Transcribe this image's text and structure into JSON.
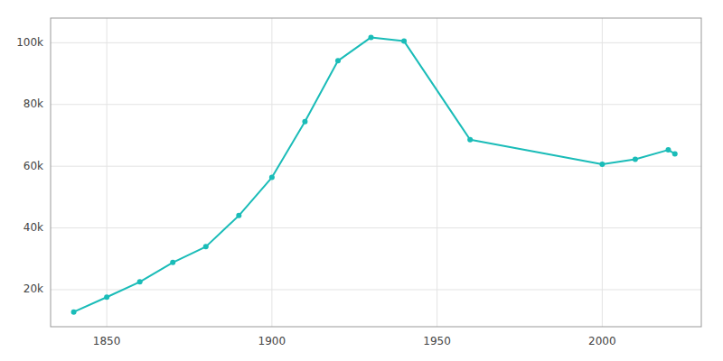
{
  "chart_data": {
    "type": "line",
    "x": [
      1840,
      1850,
      1860,
      1870,
      1880,
      1890,
      1900,
      1910,
      1920,
      1930,
      1940,
      1960,
      2000,
      2010,
      2020,
      2022
    ],
    "values": [
      12782,
      17565,
      22529,
      28804,
      33914,
      44007,
      56383,
      74419,
      94156,
      101740,
      100518,
      68593,
      60651,
      62235,
      65283,
      64000
    ],
    "color": "#1ABCB8",
    "marker": "circle",
    "xlim": [
      1833,
      2030
    ],
    "xticks": [
      1850,
      1900,
      1950,
      2000
    ],
    "ylim": [
      8000,
      108000
    ],
    "yticks": [
      {
        "value": 20000,
        "label": "20k"
      },
      {
        "value": 40000,
        "label": "40k"
      },
      {
        "value": 60000,
        "label": "60k"
      },
      {
        "value": 80000,
        "label": "80k"
      },
      {
        "value": 100000,
        "label": "100k"
      }
    ],
    "grid": true
  }
}
